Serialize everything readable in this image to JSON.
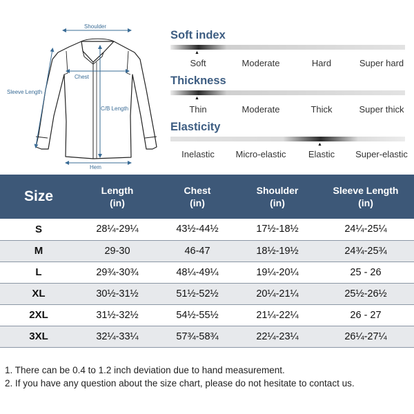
{
  "diagram": {
    "labels": {
      "shoulder": "Shoulder",
      "chest": "Chest",
      "sleeve_length": "Sleeve Length",
      "cb_length": "C/B Length",
      "hem": "Hem"
    }
  },
  "properties": [
    {
      "title": "Soft index",
      "options": [
        "Soft",
        "Moderate",
        "Hard",
        "Super hard"
      ],
      "selected": "Soft"
    },
    {
      "title": "Thickness",
      "options": [
        "Thin",
        "Moderate",
        "Thick",
        "Super thick"
      ],
      "selected": "Thin"
    },
    {
      "title": "Elasticity",
      "options": [
        "Inelastic",
        "Micro-elastic",
        "Elastic",
        "Super-elastic"
      ],
      "selected": "Elastic"
    }
  ],
  "table": {
    "headers": [
      {
        "line1": "Size",
        "line2": ""
      },
      {
        "line1": "Length",
        "line2": "(in)"
      },
      {
        "line1": "Chest",
        "line2": "(in)"
      },
      {
        "line1": "Shoulder",
        "line2": "(in)"
      },
      {
        "line1": "Sleeve Length",
        "line2": "(in)"
      }
    ],
    "rows": [
      [
        "S",
        "28¼-29¼",
        "43½-44½",
        "17½-18½",
        "24¼-25¼"
      ],
      [
        "M",
        "29-30",
        "46-47",
        "18½-19½",
        "24¾-25¾"
      ],
      [
        "L",
        "29¾-30¾",
        "48¼-49¼",
        "19¼-20¼",
        "25 - 26"
      ],
      [
        "XL",
        "30½-31½",
        "51½-52½",
        "20¼-21¼",
        "25½-26½"
      ],
      [
        "2XL",
        "31½-32½",
        "54½-55½",
        "21¼-22¼",
        "26 - 27"
      ],
      [
        "3XL",
        "32¼-33¼",
        "57¾-58¾",
        "22¼-23¼",
        "26¼-27¼"
      ]
    ]
  },
  "notes": [
    "1. There can be 0.4 to 1.2 inch deviation due to hand measurement.",
    "2. If you have any question about the size chart, please do not hesitate to contact us."
  ],
  "colors": {
    "header_bg": "#3d5878",
    "title_color": "#3d5d82",
    "stripe": "#e7e9ec",
    "diagram_line": "#3a6c96"
  }
}
